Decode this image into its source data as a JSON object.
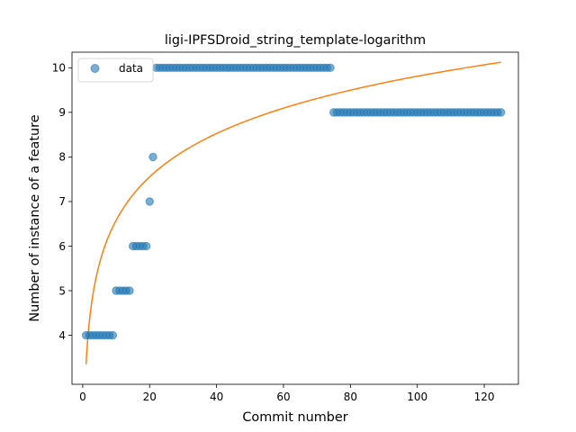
{
  "chart_data": {
    "type": "scatter",
    "title": "ligi-IPFSDroid_string_template-logarithm",
    "xlabel": "Commit number",
    "ylabel": "Number of instance of a feature",
    "xlim": [
      -3.2,
      130.2
    ],
    "ylim": [
      2.9,
      10.35
    ],
    "xticks": [
      0,
      20,
      40,
      60,
      80,
      100,
      120
    ],
    "yticks": [
      4,
      5,
      6,
      7,
      8,
      9,
      10
    ],
    "grid": false,
    "legend": {
      "placement": "top-left",
      "entries": [
        "data"
      ]
    },
    "series": [
      {
        "name": "data",
        "kind": "points",
        "color": "#1f77b4",
        "groups": [
          {
            "x_from": 1,
            "x_to": 9,
            "y": 4
          },
          {
            "x_from": 10,
            "x_to": 14,
            "y": 5
          },
          {
            "x_from": 15,
            "x_to": 19,
            "y": 6
          },
          {
            "x_from": 20,
            "x_to": 20,
            "y": 7
          },
          {
            "x_from": 21,
            "x_to": 21,
            "y": 8
          },
          {
            "x_from": 22,
            "x_to": 74,
            "y": 10
          },
          {
            "x_from": 75,
            "x_to": 125,
            "y": 9
          }
        ]
      },
      {
        "name": "",
        "kind": "fit",
        "color": "#ff7f0e",
        "model": "y = a + b*ln(x)",
        "a": 3.35,
        "b": 1.403,
        "x_range": [
          1,
          125
        ]
      }
    ]
  }
}
